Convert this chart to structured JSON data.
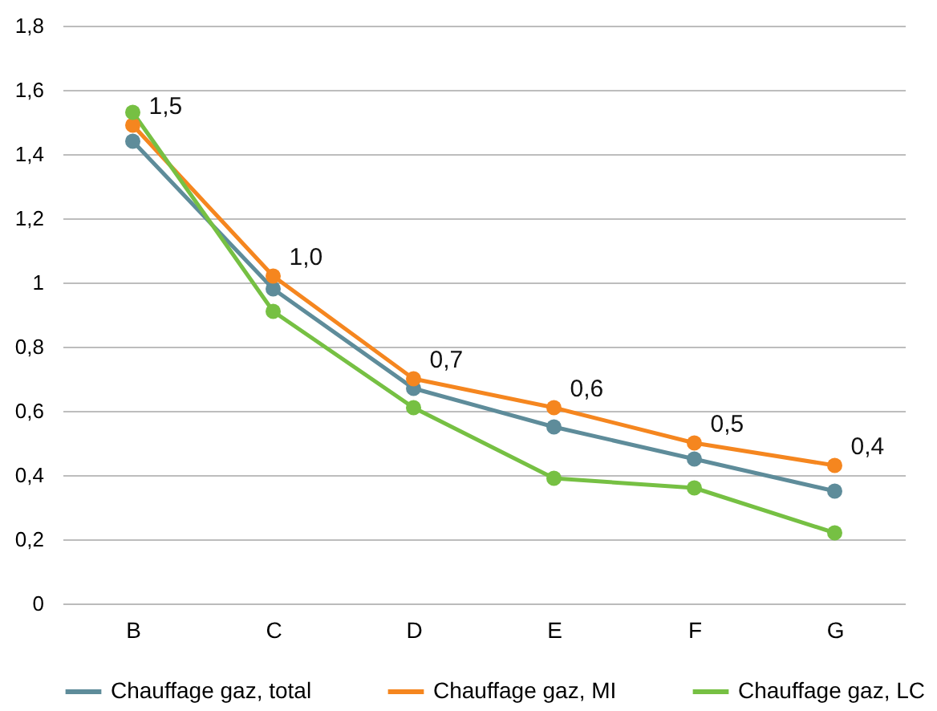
{
  "chart_data": {
    "type": "line",
    "categories": [
      "B",
      "C",
      "D",
      "E",
      "F",
      "G"
    ],
    "series": [
      {
        "name": "Chauffage gaz, total",
        "color": "#5e8c9a",
        "values": [
          1.44,
          0.98,
          0.67,
          0.55,
          0.45,
          0.35
        ]
      },
      {
        "name": "Chauffage gaz, MI",
        "color": "#f5861f",
        "values": [
          1.49,
          1.02,
          0.7,
          0.61,
          0.5,
          0.43
        ],
        "value_labels": [
          "1,5",
          "1,0",
          "0,7",
          "0,6",
          "0,5",
          "0,4"
        ]
      },
      {
        "name": "Chauffage gaz, LC",
        "color": "#76c043",
        "values": [
          1.53,
          0.91,
          0.61,
          0.39,
          0.36,
          0.22
        ]
      }
    ],
    "ylim": [
      0,
      1.8
    ],
    "yticks": [
      0,
      {
        "value": 0.2,
        "label": "0,2"
      },
      {
        "value": 0.4,
        "label": "0,4"
      },
      {
        "value": 0.6,
        "label": "0,6"
      },
      {
        "value": 0.8,
        "label": "0,8"
      },
      1,
      {
        "value": 1.2,
        "label": "1,2"
      },
      {
        "value": 1.4,
        "label": "1,4"
      },
      {
        "value": 1.6,
        "label": "1,6"
      },
      {
        "value": 1.8,
        "label": "1,8"
      }
    ],
    "grid": "y",
    "legend": "bottom",
    "marker": "circle",
    "line_style": "solid"
  }
}
